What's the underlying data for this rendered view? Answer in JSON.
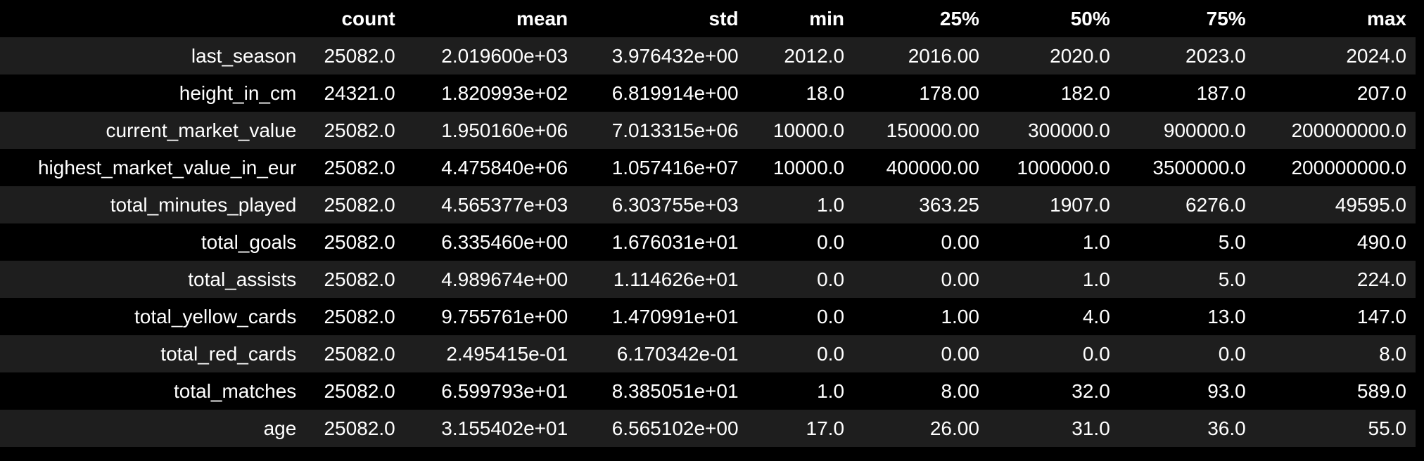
{
  "table": {
    "columns": [
      "count",
      "mean",
      "std",
      "min",
      "25%",
      "50%",
      "75%",
      "max"
    ],
    "rows": [
      {
        "label": "last_season",
        "values": [
          "25082.0",
          "2.019600e+03",
          "3.976432e+00",
          "2012.0",
          "2016.00",
          "2020.0",
          "2023.0",
          "2024.0"
        ]
      },
      {
        "label": "height_in_cm",
        "values": [
          "24321.0",
          "1.820993e+02",
          "6.819914e+00",
          "18.0",
          "178.00",
          "182.0",
          "187.0",
          "207.0"
        ]
      },
      {
        "label": "current_market_value",
        "values": [
          "25082.0",
          "1.950160e+06",
          "7.013315e+06",
          "10000.0",
          "150000.00",
          "300000.0",
          "900000.0",
          "200000000.0"
        ]
      },
      {
        "label": "highest_market_value_in_eur",
        "values": [
          "25082.0",
          "4.475840e+06",
          "1.057416e+07",
          "10000.0",
          "400000.00",
          "1000000.0",
          "3500000.0",
          "200000000.0"
        ]
      },
      {
        "label": "total_minutes_played",
        "values": [
          "25082.0",
          "4.565377e+03",
          "6.303755e+03",
          "1.0",
          "363.25",
          "1907.0",
          "6276.0",
          "49595.0"
        ]
      },
      {
        "label": "total_goals",
        "values": [
          "25082.0",
          "6.335460e+00",
          "1.676031e+01",
          "0.0",
          "0.00",
          "1.0",
          "5.0",
          "490.0"
        ]
      },
      {
        "label": "total_assists",
        "values": [
          "25082.0",
          "4.989674e+00",
          "1.114626e+01",
          "0.0",
          "0.00",
          "1.0",
          "5.0",
          "224.0"
        ]
      },
      {
        "label": "total_yellow_cards",
        "values": [
          "25082.0",
          "9.755761e+00",
          "1.470991e+01",
          "0.0",
          "1.00",
          "4.0",
          "13.0",
          "147.0"
        ]
      },
      {
        "label": "total_red_cards",
        "values": [
          "25082.0",
          "2.495415e-01",
          "6.170342e-01",
          "0.0",
          "0.00",
          "0.0",
          "0.0",
          "8.0"
        ]
      },
      {
        "label": "total_matches",
        "values": [
          "25082.0",
          "6.599793e+01",
          "8.385051e+01",
          "1.0",
          "8.00",
          "32.0",
          "93.0",
          "589.0"
        ]
      },
      {
        "label": "age",
        "values": [
          "25082.0",
          "3.155402e+01",
          "6.565102e+00",
          "17.0",
          "26.00",
          "31.0",
          "36.0",
          "55.0"
        ]
      }
    ]
  },
  "colors": {
    "background": "#000000",
    "stripe": "#1e1e1e",
    "text": "#ffffff"
  }
}
